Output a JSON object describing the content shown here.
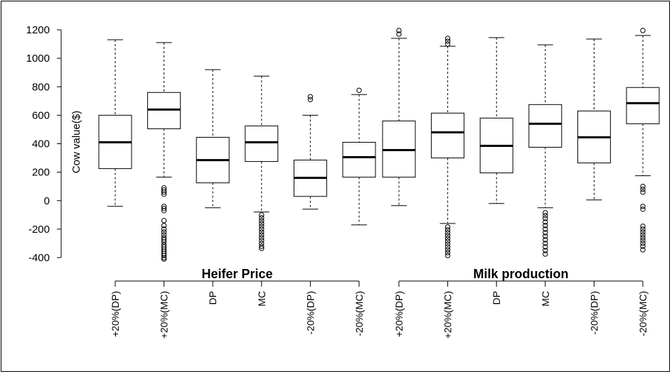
{
  "chart_data": {
    "type": "boxplot",
    "ylabel": "Cow value($)",
    "ylim": [
      -400,
      1200
    ],
    "yticks": [
      -400,
      -200,
      0,
      200,
      400,
      600,
      800,
      1000,
      1200
    ],
    "ytick_labels": [
      "-400",
      "-200",
      "0",
      "200",
      "400",
      "600",
      "800",
      "1000",
      "1200"
    ],
    "groups": [
      {
        "label": "Heifer Price",
        "boxes": [
          {
            "label": "+20%(DP)",
            "whisker_low": -40,
            "q1": 225,
            "median": 410,
            "q3": 600,
            "whisker_high": 1130,
            "outliers_low": [],
            "outliers_high": []
          },
          {
            "label": "+20%(MC)",
            "whisker_low": 165,
            "q1": 505,
            "median": 640,
            "q3": 760,
            "whisker_high": 1110,
            "outliers_low": [
              90,
              75,
              60,
              45,
              -40,
              -55,
              -70,
              -140,
              -175,
              -200,
              -220,
              -240,
              -260,
              -275,
              -290,
              -310,
              -325,
              -340,
              -355,
              -370,
              -385,
              -400,
              -410
            ],
            "outliers_high": []
          },
          {
            "label": "DP",
            "whisker_low": -50,
            "q1": 125,
            "median": 285,
            "q3": 445,
            "whisker_high": 920,
            "outliers_low": [],
            "outliers_high": []
          },
          {
            "label": "MC",
            "whisker_low": -80,
            "q1": 275,
            "median": 410,
            "q3": 525,
            "whisker_high": 875,
            "outliers_low": [
              -100,
              -120,
              -140,
              -160,
              -180,
              -200,
              -220,
              -240,
              -260,
              -280,
              -300,
              -320,
              -335
            ],
            "outliers_high": []
          },
          {
            "label": "-20%(DP)",
            "whisker_low": -60,
            "q1": 30,
            "median": 160,
            "q3": 285,
            "whisker_high": 600,
            "outliers_low": [],
            "outliers_high": [
              710,
              730
            ]
          },
          {
            "label": "-20%(MC)",
            "whisker_low": -170,
            "q1": 165,
            "median": 305,
            "q3": 410,
            "whisker_high": 745,
            "outliers_low": [],
            "outliers_high": [
              775
            ]
          }
        ]
      },
      {
        "label": "Milk production",
        "boxes": [
          {
            "label": "+20%(DP)",
            "whisker_low": -35,
            "q1": 165,
            "median": 355,
            "q3": 560,
            "whisker_high": 1140,
            "outliers_low": [],
            "outliers_high": [
              1170,
              1195
            ]
          },
          {
            "label": "+20%(MC)",
            "whisker_low": -160,
            "q1": 300,
            "median": 480,
            "q3": 615,
            "whisker_high": 1085,
            "outliers_low": [
              -185,
              -205,
              -225,
              -245,
              -265,
              -285,
              -305,
              -325,
              -345,
              -365,
              -385
            ],
            "outliers_high": [
              1100,
              1120,
              1140
            ]
          },
          {
            "label": "DP",
            "whisker_low": -20,
            "q1": 195,
            "median": 385,
            "q3": 580,
            "whisker_high": 1145,
            "outliers_low": [],
            "outliers_high": []
          },
          {
            "label": "MC",
            "whisker_low": -50,
            "q1": 375,
            "median": 540,
            "q3": 675,
            "whisker_high": 1095,
            "outliers_low": [
              -85,
              -105,
              -125,
              -150,
              -175,
              -200,
              -225,
              -250,
              -275,
              -300,
              -325,
              -350,
              -375
            ],
            "outliers_high": []
          },
          {
            "label": "-20%(DP)",
            "whisker_low": 5,
            "q1": 265,
            "median": 445,
            "q3": 630,
            "whisker_high": 1135,
            "outliers_low": [],
            "outliers_high": []
          },
          {
            "label": "-20%(MC)",
            "whisker_low": 175,
            "q1": 540,
            "median": 685,
            "q3": 795,
            "whisker_high": 1160,
            "outliers_low": [
              100,
              80,
              60,
              -40,
              -60,
              -180,
              -200,
              -220,
              -240,
              -260,
              -280,
              -300,
              -320,
              -345
            ],
            "outliers_high": [
              1195
            ]
          }
        ]
      }
    ]
  }
}
